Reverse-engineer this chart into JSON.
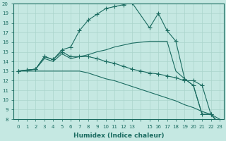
{
  "xlabel": "Humidex (Indice chaleur)",
  "bg_color": "#c5e8e2",
  "line_color": "#1a6b60",
  "grid_color": "#aad4cc",
  "xlim": [
    -0.5,
    23.5
  ],
  "ylim": [
    8,
    20
  ],
  "series": [
    {
      "x": [
        0,
        1,
        2,
        3,
        4,
        5,
        6,
        7,
        8,
        9,
        10,
        11,
        12,
        13,
        15,
        16,
        17,
        18,
        19,
        20,
        21,
        22,
        23
      ],
      "y": [
        13,
        13.1,
        13.2,
        14.5,
        14.2,
        15.2,
        15.5,
        17.2,
        18.3,
        18.9,
        19.5,
        19.7,
        19.9,
        20.1,
        17.5,
        19.0,
        17.2,
        16.1,
        12.2,
        11.5,
        8.5,
        8.5,
        7.5
      ],
      "marker": true
    },
    {
      "x": [
        0,
        1,
        2,
        3,
        4,
        5,
        6,
        7,
        8,
        9,
        10,
        11,
        12,
        13,
        14,
        15,
        16,
        17,
        18,
        19,
        20,
        21,
        22,
        23
      ],
      "y": [
        13,
        13.1,
        13.2,
        14.3,
        14.0,
        14.8,
        14.3,
        14.5,
        14.7,
        15.0,
        15.2,
        15.5,
        15.7,
        15.9,
        16.0,
        16.1,
        16.1,
        16.1,
        13.0,
        12.2,
        11.5,
        8.5,
        8.5,
        7.5
      ],
      "marker": false
    },
    {
      "x": [
        0,
        1,
        2,
        3,
        4,
        5,
        6,
        7,
        8,
        9,
        10,
        11,
        12,
        13,
        14,
        15,
        16,
        17,
        18,
        19,
        20,
        21,
        22,
        23
      ],
      "y": [
        13,
        13.1,
        13.2,
        14.5,
        14.2,
        15.0,
        14.5,
        14.5,
        14.5,
        14.3,
        14.0,
        13.8,
        13.5,
        13.2,
        13.0,
        12.8,
        12.7,
        12.5,
        12.3,
        12.0,
        12.0,
        11.5,
        8.5,
        7.5
      ],
      "marker": true
    },
    {
      "x": [
        0,
        1,
        2,
        3,
        4,
        5,
        6,
        7,
        8,
        9,
        10,
        11,
        12,
        13,
        14,
        15,
        16,
        17,
        18,
        19,
        20,
        21,
        22,
        23
      ],
      "y": [
        13,
        13,
        13,
        13,
        13,
        13,
        13,
        13,
        12.8,
        12.5,
        12.2,
        12.0,
        11.7,
        11.4,
        11.1,
        10.8,
        10.5,
        10.2,
        9.9,
        9.5,
        9.2,
        8.8,
        8.5,
        8.0
      ],
      "marker": false
    }
  ]
}
